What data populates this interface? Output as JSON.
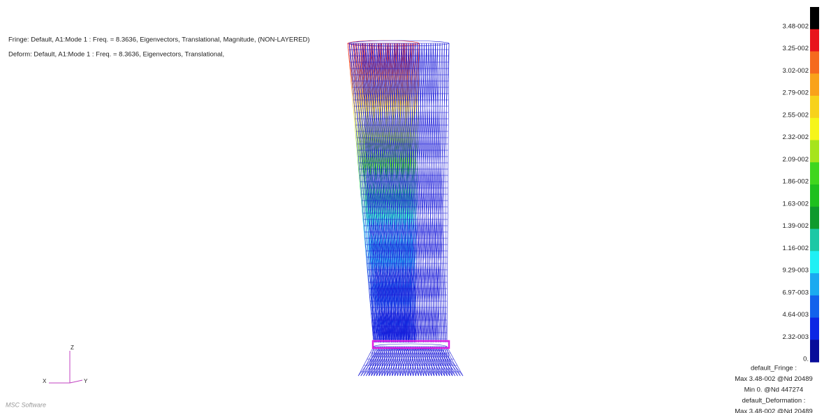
{
  "header": {
    "lines": [
      "Fringe: Default, A1:Mode 1 : Freq. = 8.3636, Eigenvectors, Translational, Magnitude, (NON-LAYERED)",
      "Deform: Default, A1:Mode 1 : Freq. = 8.3636, Eigenvectors, Translational,"
    ]
  },
  "legend": {
    "labels": [
      "3.48-002",
      "3.25-002",
      "3.02-002",
      "2.79-002",
      "2.55-002",
      "2.32-002",
      "2.09-002",
      "1.86-002",
      "1.63-002",
      "1.39-002",
      "1.16-002",
      "9.29-003",
      "6.97-003",
      "4.64-003",
      "2.32-003",
      "0."
    ],
    "colors": [
      "#000000",
      "#e8141c",
      "#f56a1e",
      "#f9a21a",
      "#f7d21b",
      "#f6f51a",
      "#a6e41c",
      "#3fd61e",
      "#1ec01e",
      "#0e9a2c",
      "#1cc8a5",
      "#1ff0f4",
      "#1aaaf0",
      "#1262ec",
      "#0c26e4",
      "#080c9a"
    ]
  },
  "summary": {
    "lines": [
      "default_Fringe :",
      "Max 3.48-002 @Nd 20489",
      "Min 0. @Nd 447274",
      "default_Deformation :",
      "Max 3.48-002 @Nd 20489"
    ]
  },
  "triad": {
    "z": "Z",
    "x": "X",
    "y": "Y"
  },
  "logo": "MSC Software"
}
